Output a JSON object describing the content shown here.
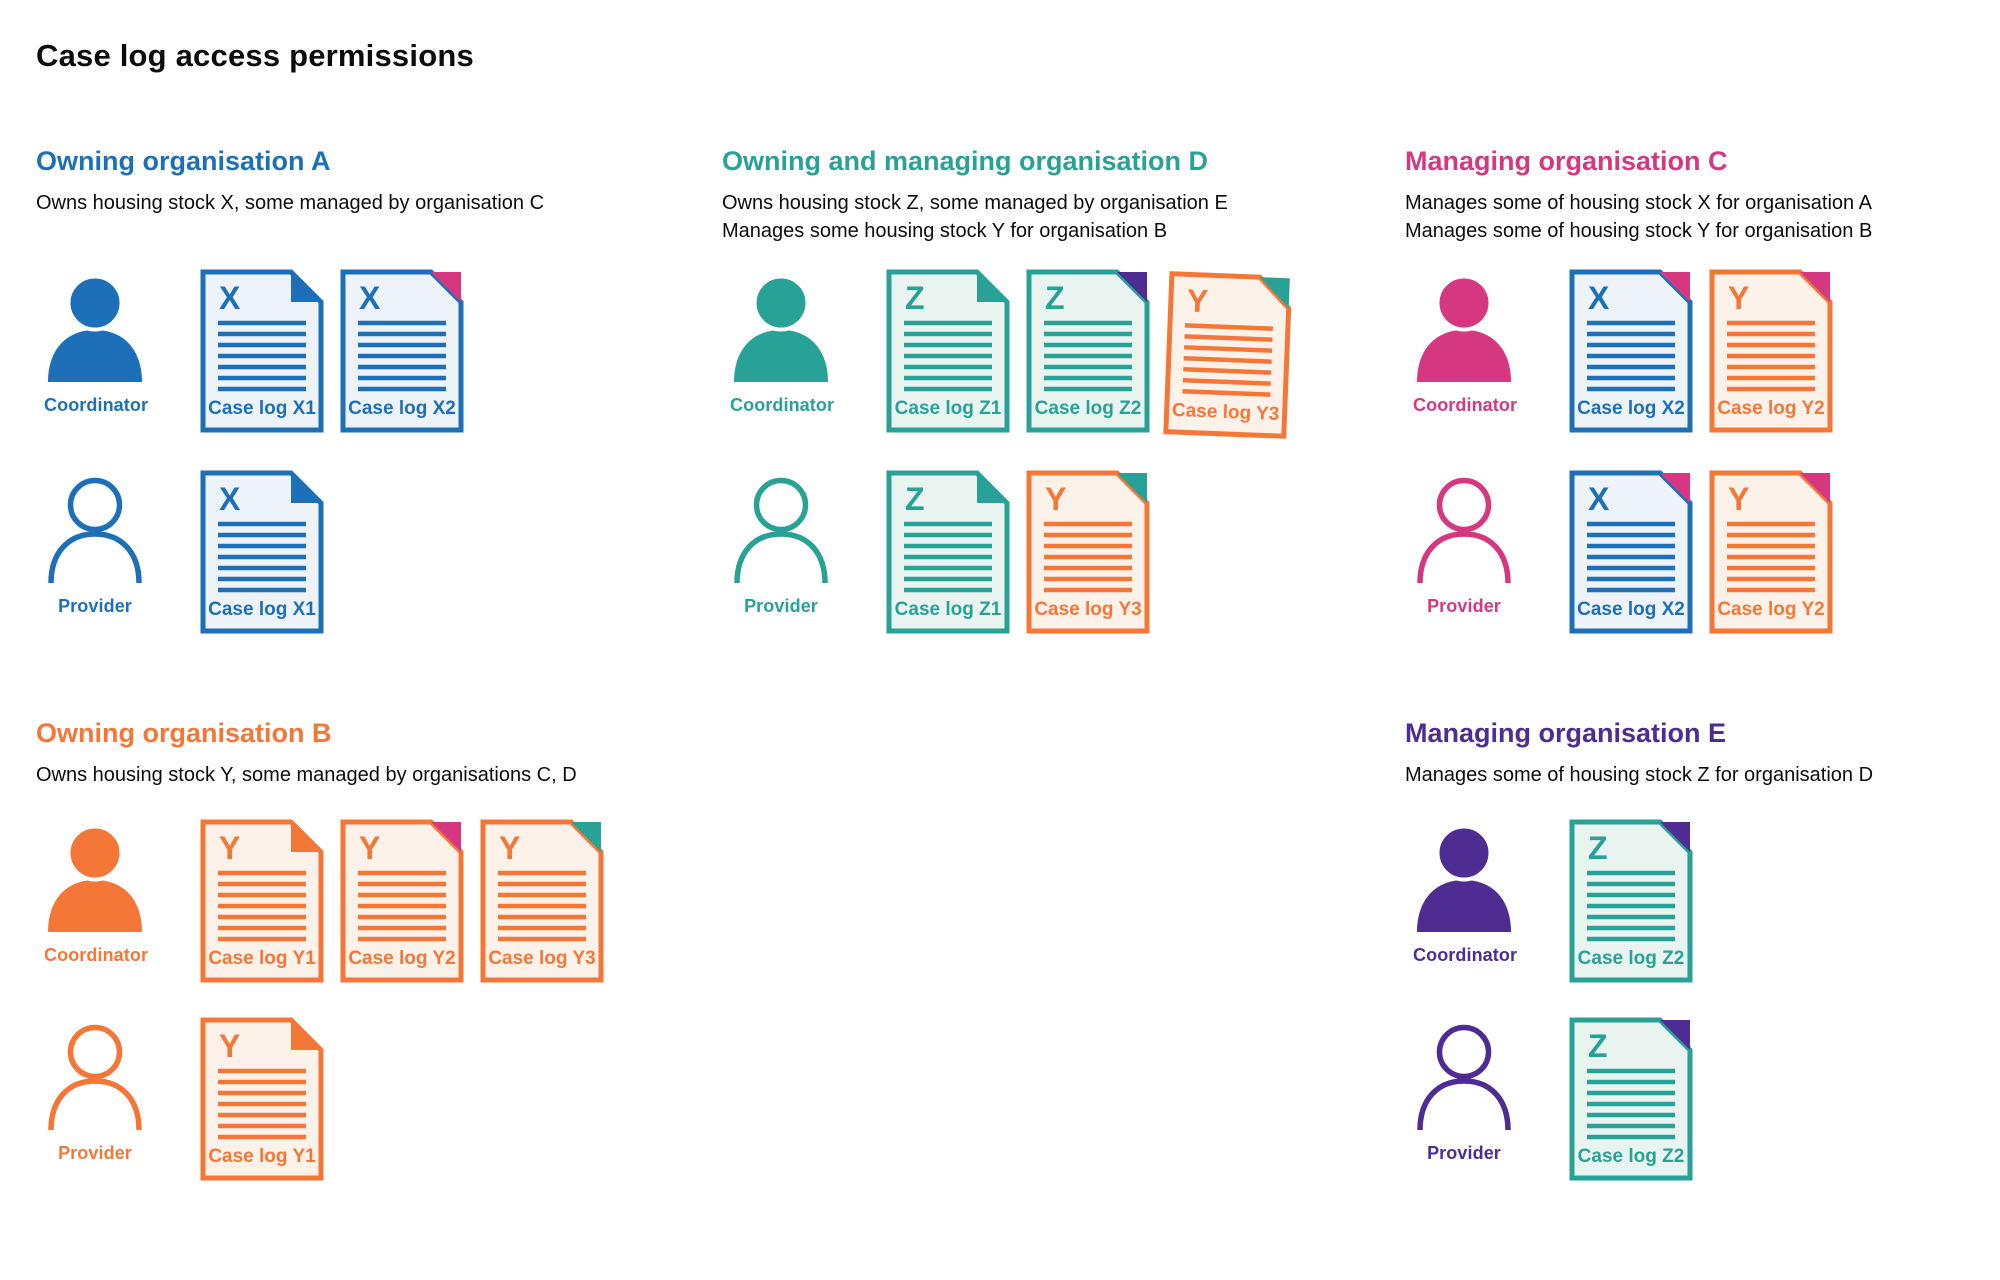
{
  "title": "Case log access permissions",
  "palette": {
    "blue": "#1d70b8",
    "teal": "#28a197",
    "pink": "#d53880",
    "orange": "#f47738",
    "purple": "#4f2c91",
    "text": "#0b0c0c",
    "doc_bg_blue": "#eef3f9",
    "doc_bg_teal": "#e9f4f1",
    "doc_bg_orange": "#fdf2ea"
  },
  "sections": [
    {
      "id": "org-a",
      "position": "top",
      "heading": "Owning organisation A",
      "color": "blue",
      "description_lines": [
        "Owns housing stock X, some managed by organisation C"
      ],
      "rows": [
        {
          "role": "Coordinator",
          "person_style": "filled",
          "docs": [
            {
              "letter": "X",
              "label": "Case log X1",
              "doc_color": "blue",
              "fold_color": "blue"
            },
            {
              "letter": "X",
              "label": "Case log X2",
              "doc_color": "blue",
              "fold_color": "pink"
            }
          ]
        },
        {
          "role": "Provider",
          "person_style": "outline",
          "docs": [
            {
              "letter": "X",
              "label": "Case log X1",
              "doc_color": "blue",
              "fold_color": "blue"
            }
          ]
        }
      ]
    },
    {
      "id": "org-d",
      "position": "top",
      "heading": "Owning and managing organisation D",
      "color": "teal",
      "description_lines": [
        "Owns housing stock Z, some managed by organisation E",
        "Manages some housing stock Y for organisation B"
      ],
      "rows": [
        {
          "role": "Coordinator",
          "person_style": "filled",
          "docs": [
            {
              "letter": "Z",
              "label": "Case log Z1",
              "doc_color": "teal",
              "fold_color": "teal"
            },
            {
              "letter": "Z",
              "label": "Case log Z2",
              "doc_color": "teal",
              "fold_color": "purple"
            },
            {
              "letter": "Y",
              "label": "Case log Y3",
              "doc_color": "orange",
              "fold_color": "teal",
              "tilt": true
            }
          ]
        },
        {
          "role": "Provider",
          "person_style": "outline",
          "docs": [
            {
              "letter": "Z",
              "label": "Case log Z1",
              "doc_color": "teal",
              "fold_color": "teal"
            },
            {
              "letter": "Y",
              "label": "Case log Y3",
              "doc_color": "orange",
              "fold_color": "teal"
            }
          ]
        }
      ]
    },
    {
      "id": "org-c",
      "position": "top",
      "heading": "Managing organisation C",
      "color": "pink",
      "description_lines": [
        "Manages some of housing stock X for organisation A",
        "Manages some of housing stock Y for organisation B"
      ],
      "rows": [
        {
          "role": "Coordinator",
          "person_style": "filled",
          "docs": [
            {
              "letter": "X",
              "label": "Case log X2",
              "doc_color": "blue",
              "fold_color": "pink"
            },
            {
              "letter": "Y",
              "label": "Case log Y2",
              "doc_color": "orange",
              "fold_color": "pink"
            }
          ]
        },
        {
          "role": "Provider",
          "person_style": "outline",
          "docs": [
            {
              "letter": "X",
              "label": "Case log X2",
              "doc_color": "blue",
              "fold_color": "pink"
            },
            {
              "letter": "Y",
              "label": "Case log Y2",
              "doc_color": "orange",
              "fold_color": "pink"
            }
          ]
        }
      ]
    },
    {
      "id": "org-b",
      "position": "bottom",
      "heading": "Owning organisation B",
      "color": "orange",
      "description_lines": [
        "Owns housing stock Y, some managed by organisations C, D"
      ],
      "rows": [
        {
          "role": "Coordinator",
          "person_style": "filled",
          "docs": [
            {
              "letter": "Y",
              "label": "Case log Y1",
              "doc_color": "orange",
              "fold_color": "orange"
            },
            {
              "letter": "Y",
              "label": "Case log Y2",
              "doc_color": "orange",
              "fold_color": "pink"
            },
            {
              "letter": "Y",
              "label": "Case log Y3",
              "doc_color": "orange",
              "fold_color": "teal"
            }
          ]
        },
        {
          "role": "Provider",
          "person_style": "outline",
          "docs": [
            {
              "letter": "Y",
              "label": "Case log Y1",
              "doc_color": "orange",
              "fold_color": "orange"
            }
          ]
        }
      ]
    },
    {
      "id": "org-e",
      "position": "bottom",
      "heading": "Managing organisation E",
      "color": "purple",
      "description_lines": [
        "Manages some of housing stock Z for organisation D"
      ],
      "rows": [
        {
          "role": "Coordinator",
          "person_style": "filled",
          "docs": [
            {
              "letter": "Z",
              "label": "Case log Z2",
              "doc_color": "teal",
              "fold_color": "purple"
            }
          ]
        },
        {
          "role": "Provider",
          "person_style": "outline",
          "docs": [
            {
              "letter": "Z",
              "label": "Case log Z2",
              "doc_color": "teal",
              "fold_color": "purple"
            }
          ]
        }
      ]
    }
  ]
}
